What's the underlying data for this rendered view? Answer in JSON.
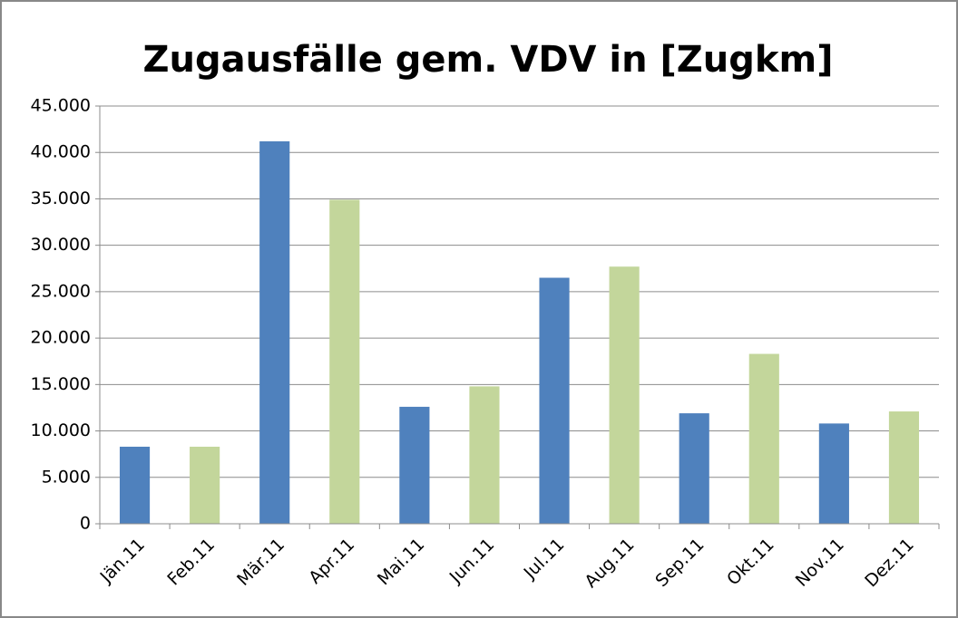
{
  "chart_data": {
    "type": "bar",
    "title": "Zugausfälle gem. VDV in [Zugkm]",
    "categories": [
      "Jän.11",
      "Feb.11",
      "Mär.11",
      "Apr.11",
      "Mai.11",
      "Jun.11",
      "Jul.11",
      "Aug.11",
      "Sep.11",
      "Okt.11",
      "Nov.11",
      "Dez.11"
    ],
    "values": [
      8300,
      8300,
      41200,
      34900,
      12600,
      14800,
      26500,
      27700,
      11900,
      18300,
      10800,
      12100
    ],
    "colors": [
      "#4f81bd",
      "#c3d69b",
      "#4f81bd",
      "#c3d69b",
      "#4f81bd",
      "#c3d69b",
      "#4f81bd",
      "#c3d69b",
      "#4f81bd",
      "#c3d69b",
      "#4f81bd",
      "#c3d69b"
    ],
    "ylim": [
      0,
      45000
    ],
    "yticks": [
      0,
      {
        "value": 5000,
        "label": "5.000"
      },
      {
        "value": 10000,
        "label": "10.000"
      },
      {
        "value": 15000,
        "label": "15.000"
      },
      {
        "value": 20000,
        "label": "20.000"
      },
      {
        "value": 25000,
        "label": "25.000"
      },
      {
        "value": 30000,
        "label": "30.000"
      },
      {
        "value": 35000,
        "label": "35.000"
      },
      {
        "value": 40000,
        "label": "40.000"
      },
      {
        "value": 45000,
        "label": "45.000"
      }
    ],
    "grid": true
  }
}
